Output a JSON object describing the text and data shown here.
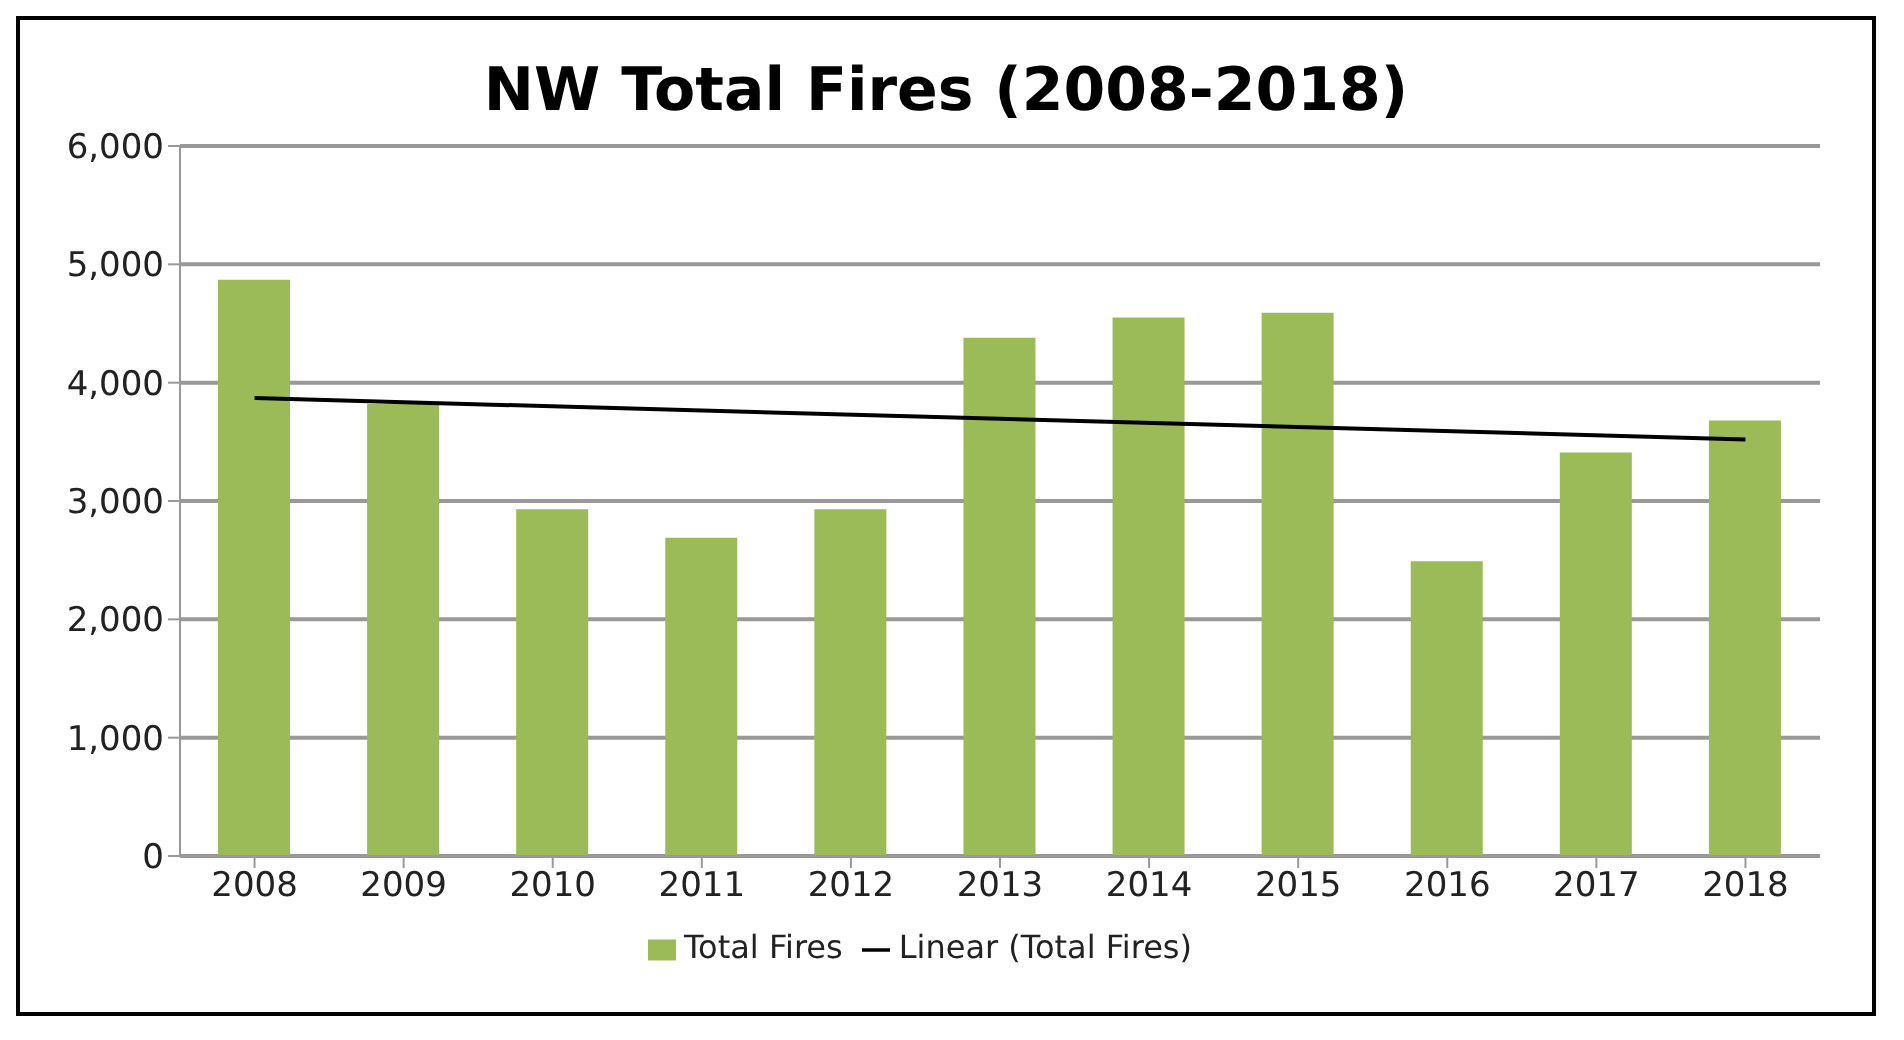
{
  "chart_data": {
    "type": "bar",
    "title": "NW Total Fires (2008-2018)",
    "categories": [
      "2008",
      "2009",
      "2010",
      "2011",
      "2012",
      "2013",
      "2014",
      "2015",
      "2016",
      "2017",
      "2018"
    ],
    "series": [
      {
        "name": "Total Fires",
        "color": "#9bbb59",
        "values": [
          4870,
          3820,
          2930,
          2690,
          2930,
          4380,
          4550,
          4590,
          2490,
          3410,
          3680
        ]
      },
      {
        "name": "Linear (Total Fires)",
        "type": "line",
        "color": "#000000",
        "values": [
          3870,
          null,
          null,
          null,
          null,
          null,
          null,
          null,
          null,
          null,
          3520
        ],
        "marker": "none",
        "line_style": "solid"
      }
    ],
    "ylim": [
      0,
      6000
    ],
    "yticks": [
      0,
      {
        "value": 1000,
        "label": "1,000"
      },
      {
        "value": 2000,
        "label": "2,000"
      },
      {
        "value": 3000,
        "label": "3,000"
      },
      {
        "value": 4000,
        "label": "4,000"
      },
      {
        "value": 5000,
        "label": "5,000"
      },
      {
        "value": 6000,
        "label": "6,000"
      }
    ],
    "grid": "y",
    "legend": "bottom"
  }
}
